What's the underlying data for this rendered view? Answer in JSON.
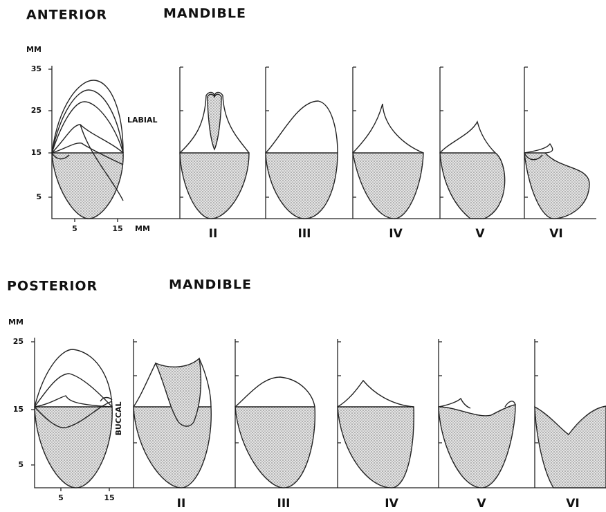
{
  "anterior": {
    "title": "ANTERIOR",
    "subtitle": "MANDIBLE",
    "unit": "MM",
    "yticks": [
      35,
      25,
      15,
      5
    ],
    "side_label": "LABIAL",
    "xticks": [
      5,
      15
    ],
    "x_unit": "MM",
    "sections": [
      "II",
      "III",
      "IV",
      "V",
      "VI"
    ]
  },
  "posterior": {
    "title": "POSTERIOR",
    "subtitle": "MANDIBLE",
    "unit": "MM",
    "yticks": [
      25,
      15,
      5
    ],
    "side_label": "BUCCAL",
    "xticks": [
      5,
      15
    ],
    "sections": [
      "II",
      "III",
      "IV",
      "V",
      "VI"
    ]
  }
}
